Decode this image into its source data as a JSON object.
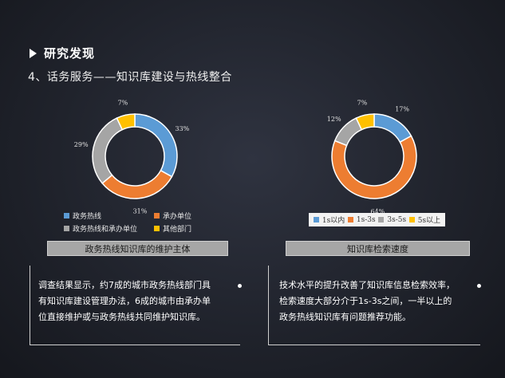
{
  "heading": "研究发现",
  "subheading": "4、话务服务——知识库建设与热线整合",
  "colors": {
    "blue": "#5b9bd5",
    "orange": "#ed7d31",
    "gray": "#a5a5a5",
    "yellow": "#ffc000"
  },
  "chart_data": [
    {
      "type": "pie",
      "title": "政务热线知识库的维护主体",
      "categories": [
        "政务热线",
        "承办单位",
        "政务热线和承办单位",
        "其他部门"
      ],
      "values": [
        33,
        31,
        29,
        7
      ],
      "value_labels": [
        "33%",
        "31%",
        "29%",
        "7%"
      ],
      "legend_position": "bottom"
    },
    {
      "type": "pie",
      "title": "知识库检索速度",
      "categories": [
        "1s以内",
        "1s-3s",
        "3s-5s",
        "5s以上"
      ],
      "values": [
        17,
        64,
        12,
        7
      ],
      "value_labels": [
        "17%",
        "64%",
        "12%",
        "7%"
      ],
      "legend_position": "bottom"
    }
  ],
  "left_desc": {
    "lines": [
      "调查结果显示，约7成的城市政务热线部门具",
      "有知识库建设管理办法，6成的城市由承办单",
      "位直接维护或与政务热线共同维护知识库。"
    ]
  },
  "right_desc": {
    "lines": [
      "技术水平的提升改善了知识库信息检索效率，",
      "检索速度大部分介于1s-3s之间，一半以上的",
      "政务热线知识库有问题推荐功能。"
    ]
  }
}
